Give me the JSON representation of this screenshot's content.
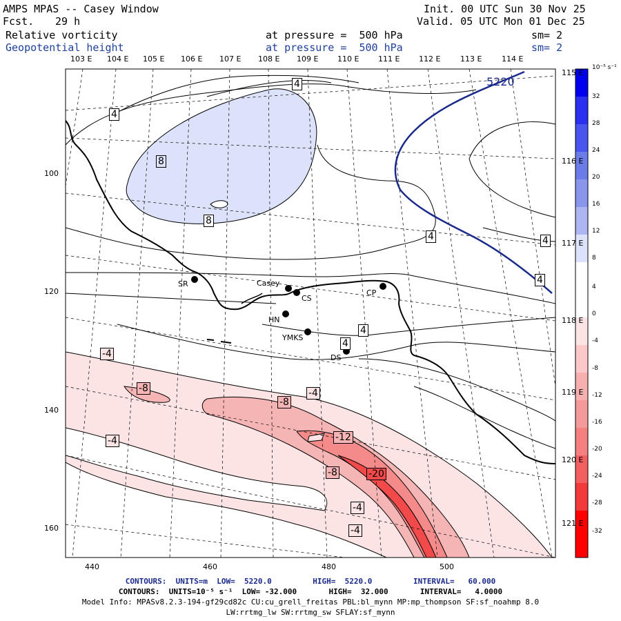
{
  "header": {
    "title": "AMPS MPAS -- Casey Window",
    "fcst_label": "Fcst.",
    "fcst_value": "29 h",
    "init": "Init. 00 UTC Sun 30 Nov 25",
    "valid": "Valid. 05 UTC Mon 01 Dec 25",
    "field1": "Relative vorticity",
    "field2": "Geopotential height",
    "pressure1": "at pressure =  500 hPa",
    "pressure2": "at pressure =  500 hPa",
    "sm1": "sm= 2",
    "sm2": "sm= 2"
  },
  "axes": {
    "top_lon": [
      "103 E",
      "104 E",
      "105 E",
      "106 E",
      "107 E",
      "108 E",
      "109 E",
      "110 E",
      "111 E",
      "112 E",
      "113 E",
      "114 E"
    ],
    "right_lon": [
      "115 E",
      "116 E",
      "117 E",
      "118 E",
      "119 E",
      "120 E",
      "121 E"
    ],
    "left_y": [
      "100",
      "120",
      "140",
      "160"
    ],
    "bottom_x": [
      "440",
      "460",
      "480",
      "500"
    ]
  },
  "stations": [
    {
      "name": "SR"
    },
    {
      "name": "Casey"
    },
    {
      "name": "CS"
    },
    {
      "name": "CP"
    },
    {
      "name": "HN"
    },
    {
      "name": "YMKS"
    },
    {
      "name": "DS"
    }
  ],
  "contour_labels": [
    "4",
    "4",
    "4",
    "4",
    "4",
    "4",
    "4",
    "8",
    "8",
    "-4",
    "-4",
    "-4",
    "-8",
    "-8",
    "-8",
    "-12",
    "-20",
    "-4",
    "-4",
    "5220"
  ],
  "colorbar": {
    "unit": "10⁻⁵ s⁻¹",
    "labels": [
      "32",
      "28",
      "24",
      "20",
      "16",
      "12",
      "8",
      "4",
      "0",
      "-4",
      "-8",
      "-12",
      "-16",
      "-20",
      "-24",
      "-28",
      "-32"
    ],
    "colors": {
      "pos_strong": "#0000ee",
      "pos_mid": "#6b7be8",
      "pos_light": "#dde2fb",
      "neg_light": "#fde4e4",
      "neg_mid": "#f4a0a0",
      "neg_strong": "#f23a3a",
      "neg_max": "#ff0000"
    }
  },
  "footer": {
    "line1": "CONTOURS:  UNITS=m  LOW=  5220.0         HIGH=  5220.0         INTERVAL=   60.000",
    "line2": "CONTOURS:  UNITS=10⁻⁵ s⁻¹  LOW= -32.000       HIGH=  32.000       INTERVAL=   4.0000",
    "line3": "Model Info: MPASv8.2.3-194-gf29cd82c CU:cu_grell_freitas PBL:bl_mynn MP:mp_thompson SF:sf_noahmp 8.0",
    "line4": "LW:rrtmg_lw SW:rrtmg_sw SFLAY:sf_mynn"
  }
}
